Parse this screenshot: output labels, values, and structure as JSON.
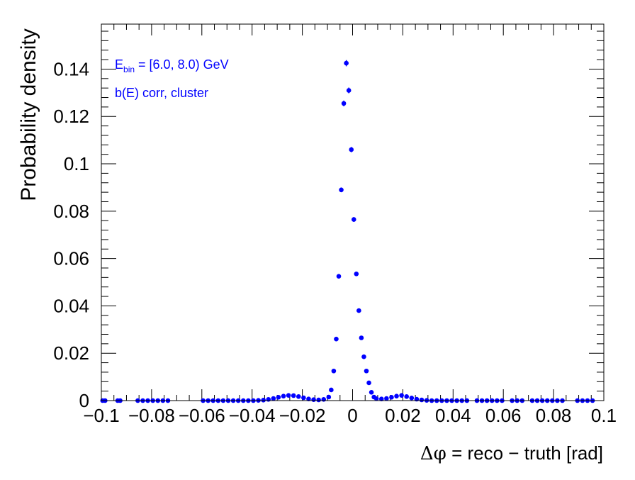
{
  "chart_data": {
    "type": "scatter",
    "xlabel_math": "Δφ",
    "xlabel_rest": " = reco − truth  [rad]",
    "ylabel": "Probability density",
    "annotation_E_main": "E",
    "annotation_E_sub": "bin",
    "annotation_E_rest": " = [6.0, 8.0) GeV",
    "annotation_line2": "b(E) corr, cluster",
    "xlim": [
      -0.1,
      0.1
    ],
    "ylim": [
      0,
      0.159
    ],
    "x_ticks": [
      -0.1,
      -0.08,
      -0.06,
      -0.04,
      -0.02,
      0,
      0.02,
      0.04,
      0.06,
      0.08,
      0.1
    ],
    "x_tick_labels": [
      "−0.1",
      "−0.08",
      "−0.06",
      "−0.04",
      "−0.02",
      "0",
      "0.02",
      "0.04",
      "0.06",
      "0.08",
      "0.1"
    ],
    "y_ticks": [
      0,
      0.02,
      0.04,
      0.06,
      0.08,
      0.1,
      0.12,
      0.14
    ],
    "y_tick_labels": [
      "0",
      "0.02",
      "0.04",
      "0.06",
      "0.08",
      "0.1",
      "0.12",
      "0.14"
    ],
    "marker_color": "#0000ff",
    "axis_color": "#000000",
    "series": [
      {
        "x": [
          -0.0995,
          -0.0985,
          -0.0935,
          -0.0925,
          -0.0855,
          -0.0835,
          -0.0815,
          -0.0795,
          -0.0775,
          -0.0755,
          -0.0735,
          -0.0595,
          -0.0575,
          -0.0555,
          -0.0535,
          -0.0515,
          -0.0495,
          -0.0475,
          -0.0455,
          -0.0435,
          -0.0415,
          -0.0395,
          -0.0375,
          -0.0355,
          -0.0335,
          -0.0315,
          -0.0295,
          -0.0275,
          -0.0255,
          -0.0235,
          -0.0215,
          -0.0195,
          -0.0175,
          -0.0155,
          -0.0135,
          -0.0115,
          -0.0095,
          -0.0085,
          -0.0075,
          -0.0065,
          -0.0055,
          -0.0045,
          -0.0035,
          -0.0025,
          -0.0015,
          -0.0005,
          0.0005,
          0.0015,
          0.0025,
          0.0035,
          0.0045,
          0.0055,
          0.0065,
          0.0075,
          0.0085,
          0.0095,
          0.0115,
          0.0135,
          0.0155,
          0.0175,
          0.0195,
          0.0215,
          0.0235,
          0.0255,
          0.0275,
          0.0295,
          0.0315,
          0.0335,
          0.0355,
          0.0375,
          0.0395,
          0.0415,
          0.0435,
          0.0455,
          0.0495,
          0.0515,
          0.0535,
          0.0555,
          0.0575,
          0.0595,
          0.0635,
          0.0655,
          0.0675,
          0.0715,
          0.0735,
          0.0755,
          0.0775,
          0.0795,
          0.0815,
          0.0835,
          0.0895,
          0.0915,
          0.0935,
          0.0955
        ],
        "y": [
          0,
          0,
          0,
          0,
          0,
          0,
          0,
          0,
          0,
          0,
          0,
          0,
          0,
          0,
          0,
          0,
          0,
          0,
          0,
          0,
          0,
          0,
          0.0001,
          0.0002,
          0.0005,
          0.0009,
          0.0014,
          0.0019,
          0.0022,
          0.0021,
          0.0017,
          0.0012,
          0.0007,
          0.0004,
          0.0003,
          0.0005,
          0.0015,
          0.0045,
          0.0125,
          0.026,
          0.0525,
          0.089,
          0.1255,
          0.1425,
          0.131,
          0.106,
          0.0765,
          0.0535,
          0.038,
          0.0265,
          0.0185,
          0.0125,
          0.0075,
          0.0035,
          0.0015,
          0.0008,
          0.0007,
          0.0009,
          0.0014,
          0.0019,
          0.0022,
          0.0017,
          0.0011,
          0.0006,
          0.0003,
          0.0001,
          0,
          0,
          0,
          0,
          0,
          0,
          0,
          0,
          0,
          0,
          0,
          0,
          0,
          0,
          0,
          0,
          0,
          0,
          0,
          0,
          0,
          0,
          0,
          0,
          0,
          0,
          0,
          0
        ],
        "yerr": [
          0,
          0,
          0,
          0,
          0,
          0,
          0,
          0,
          0,
          0,
          0,
          0,
          0,
          0,
          0,
          0,
          0,
          0,
          0,
          0,
          0,
          0,
          0,
          0,
          0,
          0,
          0,
          0,
          0,
          0,
          0,
          0,
          0,
          0,
          0,
          0,
          0,
          0,
          0,
          0,
          0.0008,
          0.001,
          0.0012,
          0.0013,
          0.0012,
          0.0011,
          0.001,
          0.0008,
          0.0007,
          0,
          0,
          0,
          0,
          0,
          0,
          0,
          0,
          0,
          0,
          0,
          0,
          0,
          0,
          0,
          0,
          0,
          0,
          0,
          0,
          0,
          0,
          0,
          0,
          0,
          0,
          0,
          0,
          0,
          0,
          0,
          0,
          0,
          0,
          0,
          0,
          0,
          0,
          0,
          0,
          0,
          0,
          0,
          0,
          0
        ]
      }
    ]
  }
}
